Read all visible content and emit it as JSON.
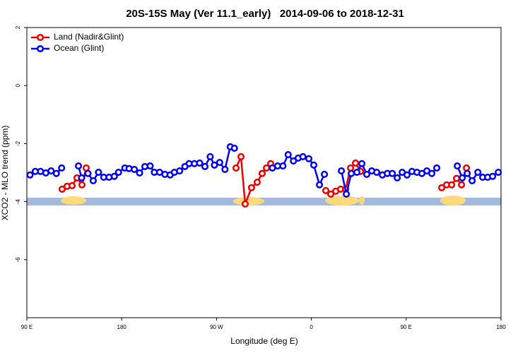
{
  "chart_data": {
    "type": "line",
    "title": "20S-15S May (Ver 11.1_early)   2014-09-06 to 2018-12-31",
    "x_label": "Longitude (deg E)",
    "y_label": "XCO2 - MLO trend (ppm)",
    "xlim": [
      90,
      540
    ],
    "xticks": [
      {
        "value": 90,
        "label": "90 E"
      },
      {
        "value": 180,
        "label": "180"
      },
      {
        "value": 270,
        "label": "90 W"
      },
      {
        "value": 360,
        "label": "0"
      },
      {
        "value": 450,
        "label": "90 E"
      },
      {
        "value": 540,
        "label": "180"
      }
    ],
    "ylim": [
      -8,
      2
    ],
    "yticks": [
      2,
      0,
      -2,
      -4,
      -6
    ],
    "legend": "top-left",
    "series": [
      {
        "name": "Land (Nadir&Glint)",
        "color": "#ee0000",
        "x": [
          123.5,
          128.2,
          132.9,
          137.6,
          142.3,
          146.3,
          147,
          288.5,
          293.2,
          297.2,
          303.2,
          308.6,
          313.3,
          317.4,
          321.4,
          322,
          373.7,
          378.4,
          383.1,
          387.8,
          392.5,
          397.2,
          401.9,
          406.6,
          407,
          483.7,
          488.4,
          493.1,
          497.8,
          502.5,
          507.2
        ],
        "values": [
          -3.57,
          -3.47,
          -3.45,
          -3.18,
          -3.42,
          -2.84,
          null,
          -2.84,
          -2.45,
          -4.08,
          -3.52,
          -3.33,
          -3.03,
          -2.84,
          -2.69,
          null,
          -3.62,
          -3.74,
          -3.64,
          -3.57,
          -3.57,
          -2.84,
          -2.67,
          -2.96,
          null,
          -3.52,
          -3.42,
          -3.42,
          -3.2,
          -3.42,
          -2.84
        ]
      },
      {
        "name": "Ocean (Glint)",
        "color": "#0000ee",
        "x": [
          93,
          98,
          103,
          108,
          113,
          118,
          123,
          130,
          139,
          142,
          148,
          153,
          158,
          163,
          168,
          173,
          177,
          183,
          187,
          192,
          197,
          202,
          207,
          211,
          216,
          221,
          226,
          230,
          235,
          240,
          244,
          249,
          254,
          259,
          264,
          268,
          273,
          278,
          283,
          287,
          300,
          323,
          328,
          333,
          338,
          343,
          347.5,
          352,
          357.6,
          362.3,
          367.7,
          372.4,
          380,
          388.5,
          393.2,
          397.9,
          403.2,
          407.9,
          412.6,
          417.3,
          422,
          427.4,
          432.1,
          436.8,
          441.5,
          446.2,
          450.8,
          455.5,
          460.2,
          464.9,
          469.6,
          474.3,
          479,
          490,
          498.5,
          503.2,
          507.9,
          512.6,
          518,
          522.6,
          527.3,
          532,
          537.4
        ],
        "values": [
          -3.08,
          -2.96,
          -2.96,
          -3.01,
          -2.94,
          -3.03,
          -2.84,
          null,
          -2.77,
          -3.18,
          -3.03,
          -3.28,
          -2.99,
          -3.16,
          -3.16,
          -3.13,
          -2.99,
          -2.84,
          -2.86,
          -2.89,
          -3.01,
          -2.79,
          -2.77,
          -2.99,
          -2.99,
          -3.06,
          -3.08,
          -2.99,
          -2.94,
          -2.79,
          -2.69,
          -2.69,
          -2.67,
          -2.79,
          -2.45,
          -2.74,
          -2.65,
          -2.89,
          -2.11,
          -2.16,
          null,
          -2.84,
          -2.77,
          -2.77,
          -2.38,
          -2.6,
          -2.5,
          -2.45,
          -2.52,
          -2.74,
          -3.42,
          -3.06,
          null,
          -2.94,
          -3.74,
          -3.03,
          -2.99,
          -2.69,
          -3.06,
          -2.94,
          -2.99,
          -3.08,
          -3.03,
          -3.03,
          -3.18,
          -2.99,
          -3.08,
          -2.96,
          -2.99,
          -3.03,
          -2.94,
          -3.03,
          -2.84,
          null,
          -2.77,
          -3.18,
          -3.03,
          -3.28,
          -2.99,
          -3.16,
          -3.16,
          -3.13,
          -2.99
        ]
      }
    ]
  }
}
